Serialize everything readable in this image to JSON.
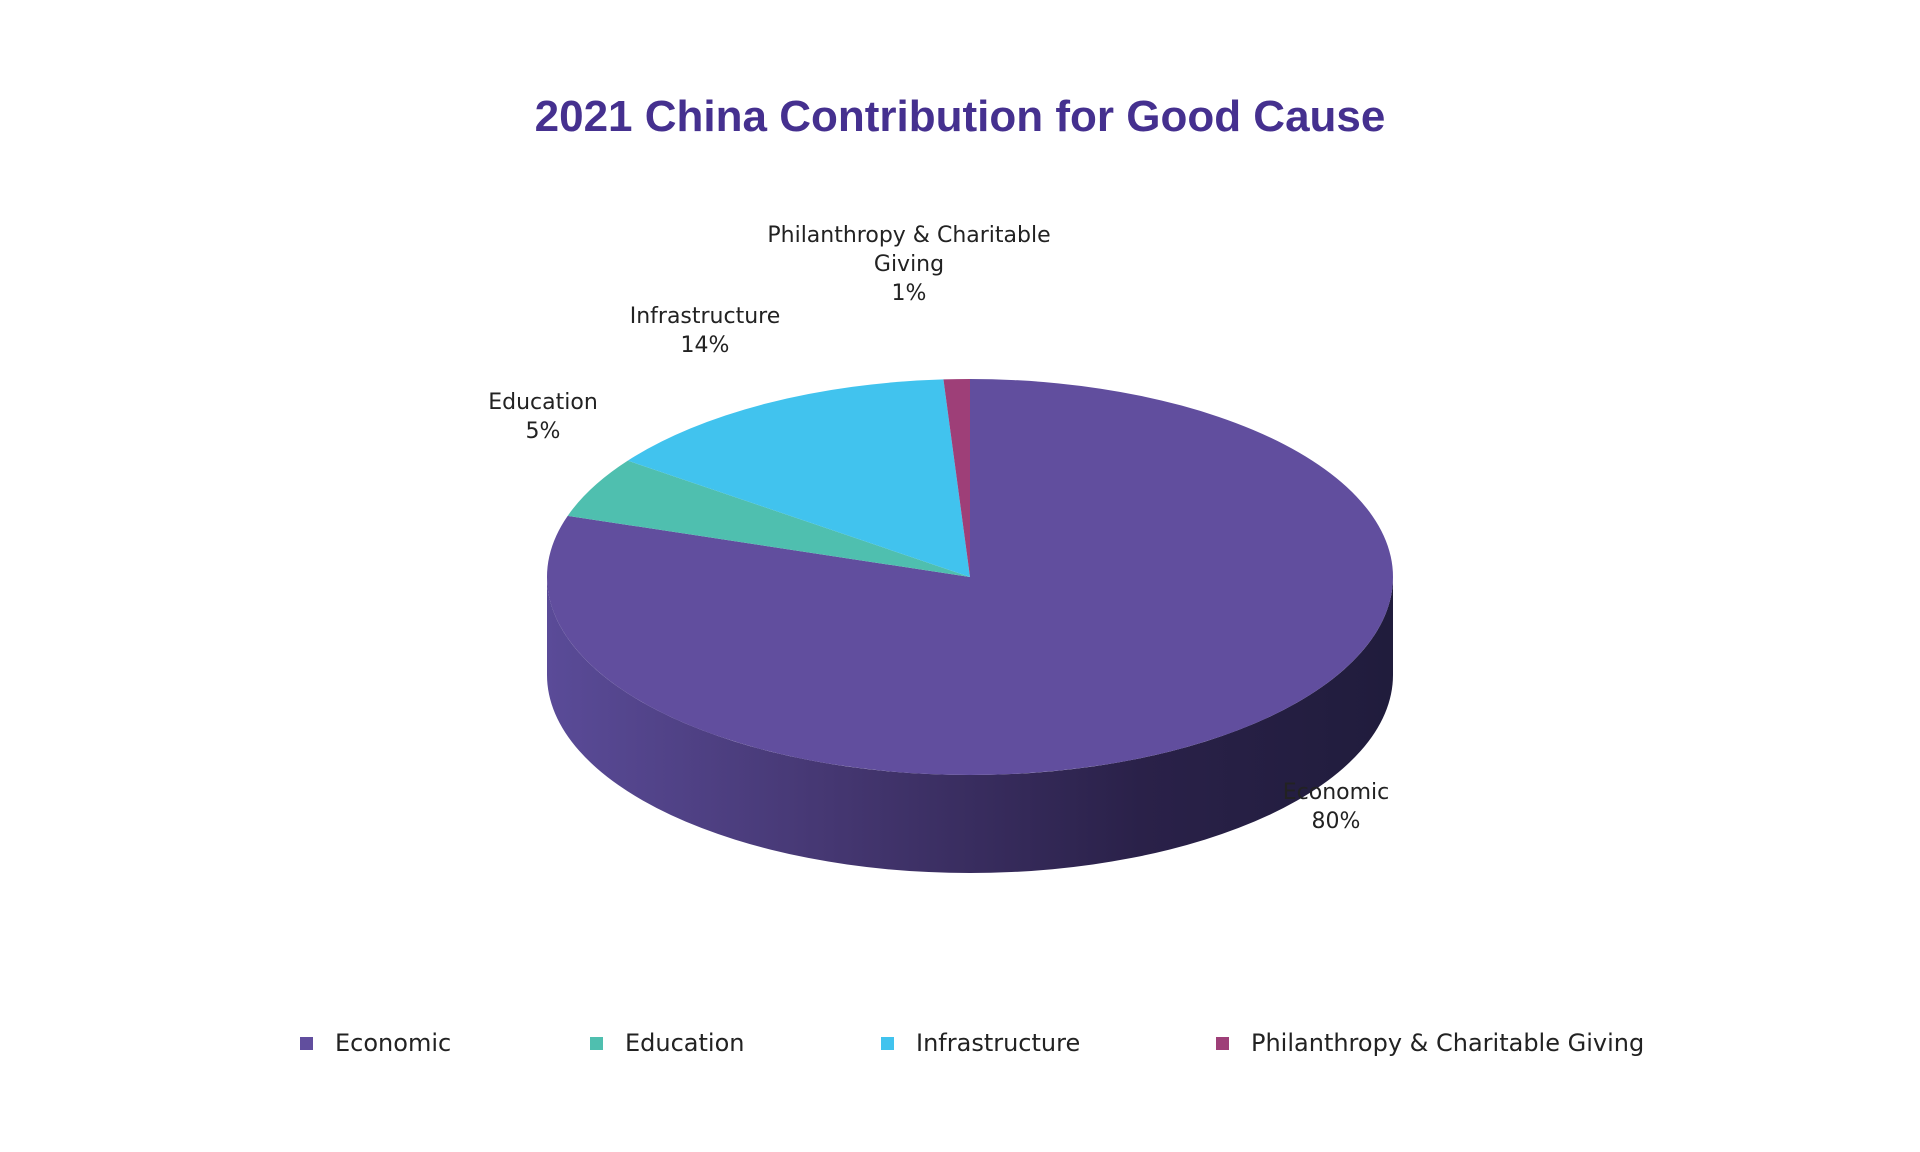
{
  "chart_data": {
    "type": "pie",
    "title": "2021 China Contribution for Good Cause",
    "labels": [
      "Economic",
      "Education",
      "Infrastructure",
      "Philanthropy & Charitable Giving"
    ],
    "slice_labels": [
      [
        "Economic",
        "80%"
      ],
      [
        "Education",
        "5%"
      ],
      [
        "Infrastructure",
        "14%"
      ],
      [
        "Philanthropy & Charitable",
        "Giving",
        "1%"
      ]
    ],
    "values": [
      80,
      5,
      14,
      1
    ],
    "colors": [
      "#614e9e",
      "#4fbfaf",
      "#41c3ee",
      "#9e3f78"
    ],
    "side_colors": [
      "#4a3f80",
      "#3a8f85",
      "#2f90b3",
      "#6e2c55"
    ],
    "title_color": "#45308f",
    "legend_position": "bottom",
    "style": "3d"
  }
}
